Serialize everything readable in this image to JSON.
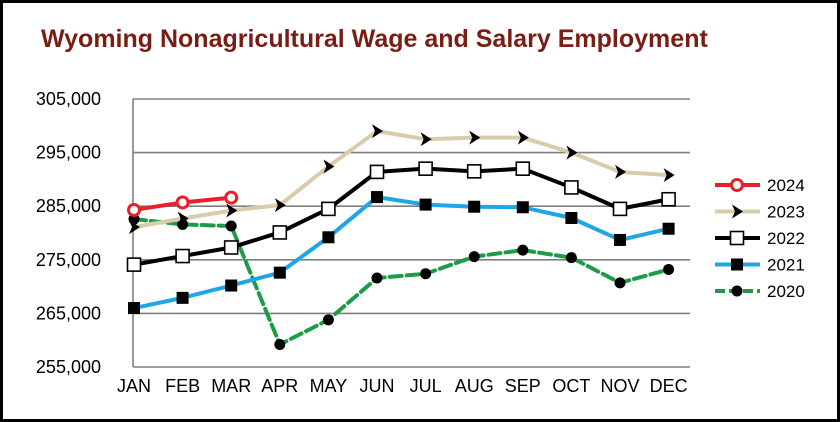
{
  "chart_data": {
    "type": "line",
    "title": "Wyoming Nonagricultural Wage and Salary Employment",
    "xlabel": "",
    "ylabel": "",
    "categories": [
      "JAN",
      "FEB",
      "MAR",
      "APR",
      "MAY",
      "JUN",
      "JUL",
      "AUG",
      "SEP",
      "OCT",
      "NOV",
      "DEC"
    ],
    "ylim": [
      255000,
      305000
    ],
    "yticks": [
      255000,
      265000,
      275000,
      285000,
      295000,
      305000
    ],
    "ytick_labels": [
      "255,000",
      "265,000",
      "275,000",
      "285,000",
      "295,000",
      "305,000"
    ],
    "grid": "horizontal",
    "legend_position": "right",
    "series": [
      {
        "name": "2024",
        "color": "#e8202a",
        "marker": "open-circle",
        "dash": "solid",
        "values": [
          284300,
          285700,
          286600,
          null,
          null,
          null,
          null,
          null,
          null,
          null,
          null,
          null
        ]
      },
      {
        "name": "2023",
        "color": "#d8ccaa",
        "marker": "arrowhead",
        "dash": "solid",
        "values": [
          281100,
          282700,
          284200,
          285200,
          292400,
          299000,
          297500,
          297800,
          297800,
          295000,
          291400,
          290800
        ]
      },
      {
        "name": "2022",
        "color": "#000000",
        "marker": "open-square",
        "dash": "solid",
        "values": [
          274100,
          275700,
          277300,
          280100,
          284500,
          291400,
          292000,
          291500,
          292000,
          288500,
          284500,
          286300
        ]
      },
      {
        "name": "2021",
        "color": "#1fa6e6",
        "marker": "filled-square",
        "dash": "solid",
        "values": [
          266000,
          267900,
          270200,
          272600,
          279200,
          286700,
          285300,
          284900,
          284800,
          282800,
          278700,
          280800
        ]
      },
      {
        "name": "2020",
        "color": "#1d9b47",
        "marker": "filled-circle",
        "dash": "dashed",
        "values": [
          282600,
          281600,
          281300,
          259200,
          263800,
          271600,
          272400,
          275600,
          276800,
          275400,
          270700,
          273200
        ]
      }
    ]
  }
}
